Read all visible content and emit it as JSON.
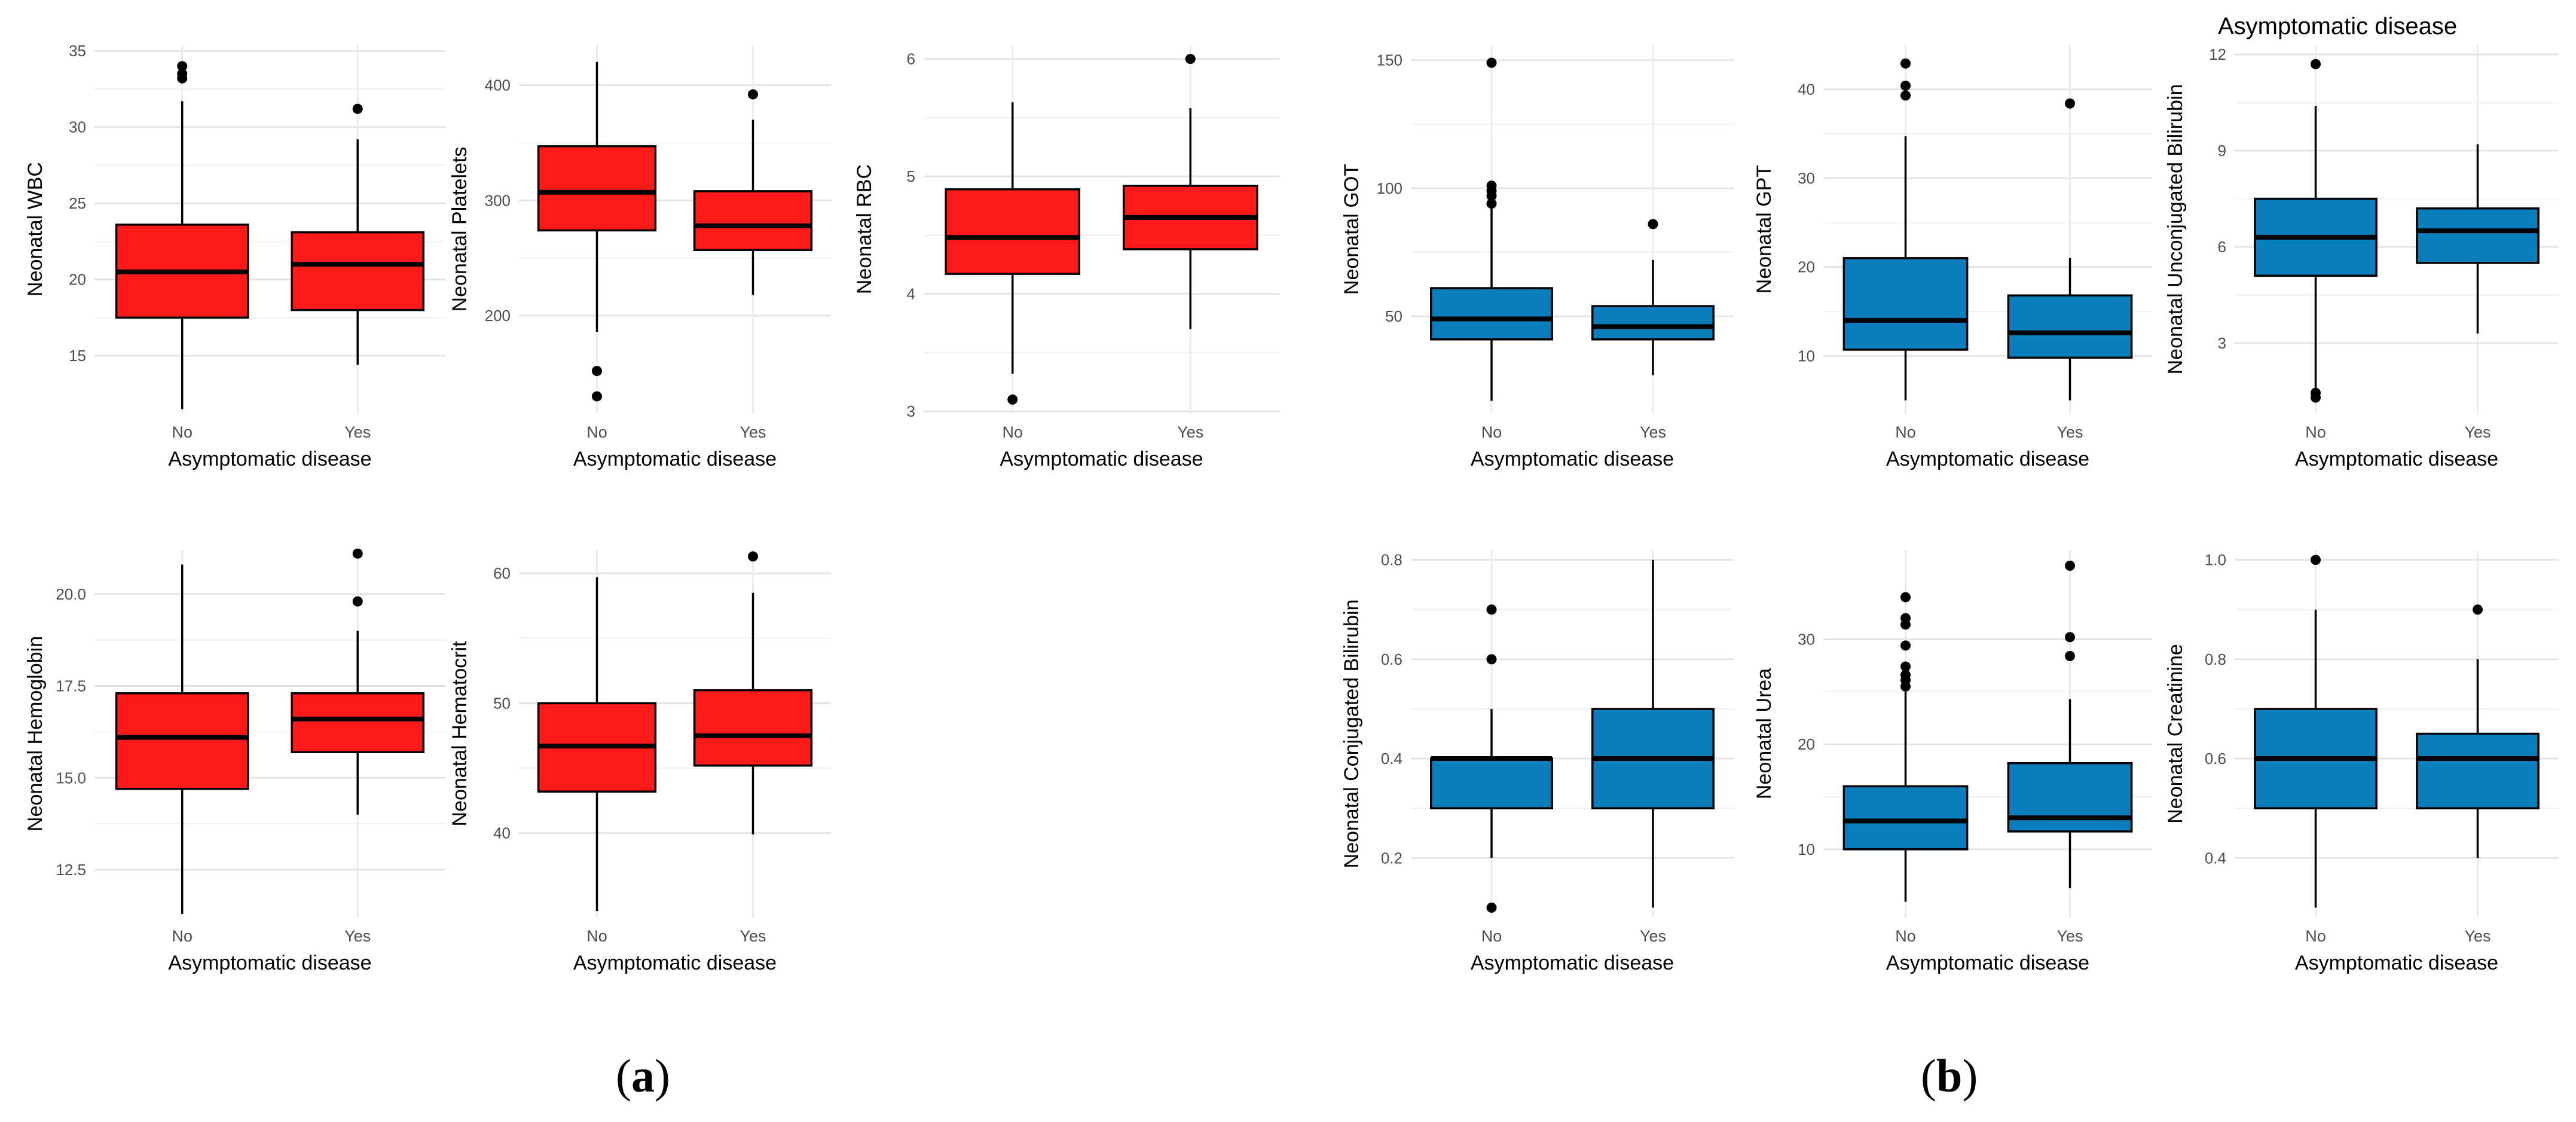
{
  "figure": {
    "panel_labels": {
      "a": "a",
      "b": "b",
      "open": "(",
      "close": ")"
    },
    "stray_title": "Asymptomatic disease",
    "colors": {
      "group_a": "#ff1a1a",
      "group_b": "#0a7ebd"
    }
  },
  "chart_data": [
    {
      "type": "boxplot",
      "group": "a",
      "ylabel": "Neonatal WBC",
      "xlabel": "Asymptomatic disease",
      "categories": [
        "No",
        "Yes"
      ],
      "ylim": [
        11.2,
        35.4
      ],
      "yticks": [
        15,
        20,
        25,
        30,
        35
      ],
      "ytick_labels": [
        "15",
        "20",
        "25",
        "30",
        "35"
      ],
      "boxes": [
        {
          "category": "No",
          "lower_whisker": 11.5,
          "q1": 17.5,
          "median": 20.5,
          "q3": 23.6,
          "upper_whisker": 31.7,
          "outliers": [
            33.2,
            33.5,
            34.0
          ]
        },
        {
          "category": "Yes",
          "lower_whisker": 14.4,
          "q1": 18.0,
          "median": 21.0,
          "q3": 23.1,
          "upper_whisker": 29.2,
          "outliers": [
            31.2
          ]
        }
      ]
    },
    {
      "type": "boxplot",
      "group": "a",
      "ylabel": "Neonatal Platelets",
      "xlabel": "Asymptomatic disease",
      "categories": [
        "No",
        "Yes"
      ],
      "ylim": [
        115,
        435
      ],
      "yticks": [
        200,
        300,
        400
      ],
      "ytick_labels": [
        "200",
        "300",
        "400"
      ],
      "boxes": [
        {
          "category": "No",
          "lower_whisker": 186,
          "q1": 274,
          "median": 307,
          "q3": 347,
          "upper_whisker": 420,
          "outliers": [
            152,
            130
          ]
        },
        {
          "category": "Yes",
          "lower_whisker": 218,
          "q1": 257,
          "median": 278,
          "q3": 308,
          "upper_whisker": 370,
          "outliers": [
            392
          ]
        }
      ]
    },
    {
      "type": "boxplot",
      "group": "a",
      "ylabel": "Neonatal RBC",
      "xlabel": "Asymptomatic disease",
      "categories": [
        "No",
        "Yes"
      ],
      "ylim": [
        2.98,
        6.12
      ],
      "yticks": [
        3,
        4,
        5,
        6
      ],
      "ytick_labels": [
        "3",
        "4",
        "5",
        "6"
      ],
      "boxes": [
        {
          "category": "No",
          "lower_whisker": 3.32,
          "q1": 4.17,
          "median": 4.48,
          "q3": 4.89,
          "upper_whisker": 5.63,
          "outliers": [
            3.1
          ]
        },
        {
          "category": "Yes",
          "lower_whisker": 3.7,
          "q1": 4.38,
          "median": 4.65,
          "q3": 4.92,
          "upper_whisker": 5.58,
          "outliers": [
            6.0
          ]
        }
      ]
    },
    {
      "type": "boxplot",
      "group": "a",
      "ylabel": "Neonatal Hemoglobin",
      "xlabel": "Asymptomatic disease",
      "categories": [
        "No",
        "Yes"
      ],
      "ylim": [
        11.2,
        21.2
      ],
      "yticks": [
        12.5,
        15.0,
        17.5,
        20.0
      ],
      "ytick_labels": [
        "12.5",
        "15.0",
        "17.5",
        "20.0"
      ],
      "boxes": [
        {
          "category": "No",
          "lower_whisker": 11.3,
          "q1": 14.7,
          "median": 16.1,
          "q3": 17.3,
          "upper_whisker": 20.8,
          "outliers": []
        },
        {
          "category": "Yes",
          "lower_whisker": 14.0,
          "q1": 15.7,
          "median": 16.6,
          "q3": 17.3,
          "upper_whisker": 19.0,
          "outliers": [
            19.8,
            21.1
          ]
        }
      ]
    },
    {
      "type": "boxplot",
      "group": "a",
      "ylabel": "Neonatal Hematocrit",
      "xlabel": "Asymptomatic disease",
      "categories": [
        "No",
        "Yes"
      ],
      "ylim": [
        33.5,
        61.8
      ],
      "yticks": [
        40,
        50,
        60
      ],
      "ytick_labels": [
        "40",
        "50",
        "60"
      ],
      "boxes": [
        {
          "category": "No",
          "lower_whisker": 34.0,
          "q1": 43.2,
          "median": 46.7,
          "q3": 50.0,
          "upper_whisker": 59.7,
          "outliers": []
        },
        {
          "category": "Yes",
          "lower_whisker": 39.9,
          "q1": 45.2,
          "median": 47.5,
          "q3": 51.0,
          "upper_whisker": 58.5,
          "outliers": [
            61.3
          ]
        }
      ]
    },
    {
      "type": "boxplot",
      "group": "b",
      "ylabel": "Neonatal GOT",
      "xlabel": "Asymptomatic disease",
      "categories": [
        "No",
        "Yes"
      ],
      "ylim": [
        12,
        156
      ],
      "yticks": [
        50,
        100,
        150
      ],
      "ytick_labels": [
        "50",
        "100",
        "150"
      ],
      "boxes": [
        {
          "category": "No",
          "lower_whisker": 17,
          "q1": 41,
          "median": 49,
          "q3": 61,
          "upper_whisker": 93,
          "outliers": [
            94,
            97,
            99,
            101,
            149
          ]
        },
        {
          "category": "Yes",
          "lower_whisker": 27,
          "q1": 41,
          "median": 46,
          "q3": 54,
          "upper_whisker": 72,
          "outliers": [
            86
          ]
        }
      ]
    },
    {
      "type": "boxplot",
      "group": "b",
      "ylabel": "Neonatal GPT",
      "xlabel": "Asymptomatic disease",
      "categories": [
        "No",
        "Yes"
      ],
      "ylim": [
        3.5,
        45
      ],
      "yticks": [
        10,
        20,
        30,
        40
      ],
      "ytick_labels": [
        "10",
        "20",
        "30",
        "40"
      ],
      "boxes": [
        {
          "category": "No",
          "lower_whisker": 5.0,
          "q1": 10.7,
          "median": 14.0,
          "q3": 21.0,
          "upper_whisker": 34.7,
          "outliers": [
            39.3,
            40.4,
            42.9
          ]
        },
        {
          "category": "Yes",
          "lower_whisker": 5.0,
          "q1": 9.8,
          "median": 12.6,
          "q3": 16.8,
          "upper_whisker": 21.0,
          "outliers": [
            38.4
          ]
        }
      ]
    },
    {
      "type": "boxplot",
      "group": "b",
      "ylabel": "Neonatal Unconjugated Bilirubin",
      "xlabel": "Asymptomatic disease",
      "categories": [
        "No",
        "Yes"
      ],
      "ylim": [
        0.8,
        12.3
      ],
      "yticks": [
        3,
        6,
        9,
        12
      ],
      "ytick_labels": [
        "3",
        "6",
        "9",
        "12"
      ],
      "boxes": [
        {
          "category": "No",
          "lower_whisker": 1.6,
          "q1": 5.1,
          "median": 6.3,
          "q3": 7.5,
          "upper_whisker": 10.4,
          "outliers": [
            1.3,
            1.45,
            11.7
          ]
        },
        {
          "category": "Yes",
          "lower_whisker": 3.3,
          "q1": 5.5,
          "median": 6.5,
          "q3": 7.2,
          "upper_whisker": 9.2,
          "outliers": []
        }
      ]
    },
    {
      "type": "boxplot",
      "group": "b",
      "ylabel": "Neonatal Conjugated Bilirubin",
      "xlabel": "Asymptomatic disease",
      "categories": [
        "No",
        "Yes"
      ],
      "ylim": [
        0.08,
        0.82
      ],
      "yticks": [
        0.2,
        0.4,
        0.6,
        0.8
      ],
      "ytick_labels": [
        "0.2",
        "0.4",
        "0.6",
        "0.8"
      ],
      "boxes": [
        {
          "category": "No",
          "lower_whisker": 0.2,
          "q1": 0.3,
          "median": 0.4,
          "q3": 0.4,
          "upper_whisker": 0.5,
          "outliers": [
            0.1,
            0.6,
            0.7
          ]
        },
        {
          "category": "Yes",
          "lower_whisker": 0.1,
          "q1": 0.3,
          "median": 0.4,
          "q3": 0.5,
          "upper_whisker": 0.8,
          "outliers": []
        }
      ]
    },
    {
      "type": "boxplot",
      "group": "b",
      "ylabel": "Neonatal Urea",
      "xlabel": "Asymptomatic disease",
      "categories": [
        "No",
        "Yes"
      ],
      "ylim": [
        3.5,
        38.5
      ],
      "yticks": [
        10,
        20,
        30
      ],
      "ytick_labels": [
        "10",
        "20",
        "30"
      ],
      "boxes": [
        {
          "category": "No",
          "lower_whisker": 5.0,
          "q1": 10.0,
          "median": 12.7,
          "q3": 16.0,
          "upper_whisker": 25.0,
          "outliers": [
            25.5,
            26.1,
            26.6,
            27.4,
            29.4,
            31.4,
            32.0,
            34.0
          ]
        },
        {
          "category": "Yes",
          "lower_whisker": 6.3,
          "q1": 11.7,
          "median": 13.0,
          "q3": 18.2,
          "upper_whisker": 24.3,
          "outliers": [
            28.4,
            30.2,
            37.0
          ]
        }
      ]
    },
    {
      "type": "boxplot",
      "group": "b",
      "ylabel": "Neonatal Creatinine",
      "xlabel": "Asymptomatic disease",
      "categories": [
        "No",
        "Yes"
      ],
      "ylim": [
        0.28,
        1.02
      ],
      "yticks": [
        0.4,
        0.6,
        0.8,
        1.0
      ],
      "ytick_labels": [
        "0.4",
        "0.6",
        "0.8",
        "1.0"
      ],
      "boxes": [
        {
          "category": "No",
          "lower_whisker": 0.3,
          "q1": 0.5,
          "median": 0.6,
          "q3": 0.7,
          "upper_whisker": 0.9,
          "outliers": [
            1.0
          ]
        },
        {
          "category": "Yes",
          "lower_whisker": 0.4,
          "q1": 0.5,
          "median": 0.6,
          "q3": 0.65,
          "upper_whisker": 0.8,
          "outliers": [
            0.9
          ]
        }
      ]
    }
  ]
}
